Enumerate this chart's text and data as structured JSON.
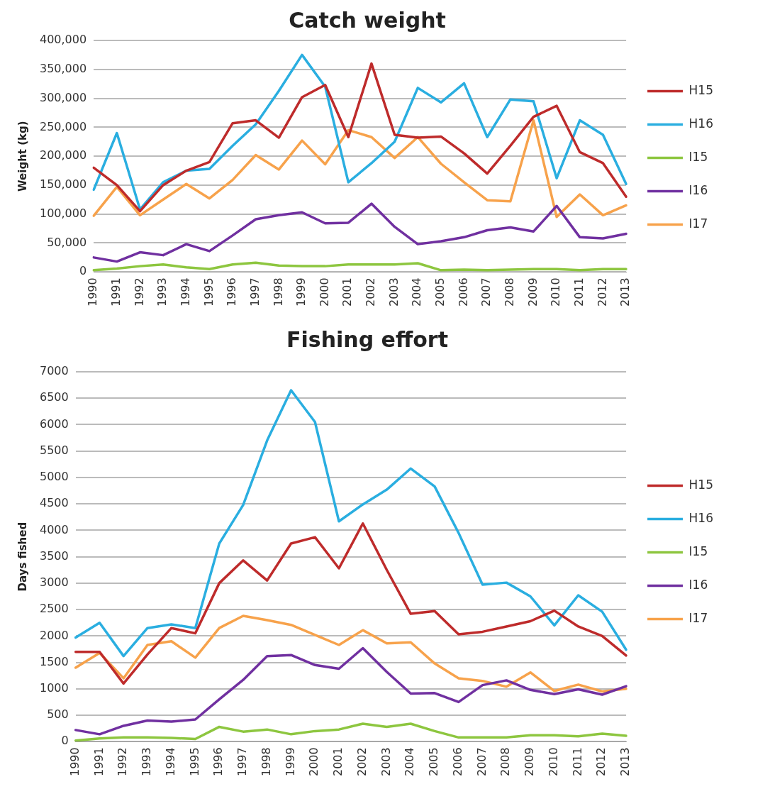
{
  "chart_data": [
    {
      "type": "line",
      "title": "Catch weight",
      "ylabel": "Weight (kg)",
      "legend": "right",
      "grid": "y",
      "marker": "none",
      "line_style": "solid",
      "categories": [
        "1990",
        "1991",
        "1992",
        "1993",
        "1994",
        "1995",
        "1996",
        "1997",
        "1998",
        "1999",
        "2000",
        "2001",
        "2002",
        "2003",
        "2004",
        "2005",
        "2006",
        "2007",
        "2008",
        "2009",
        "2010",
        "2011",
        "2012",
        "2013"
      ],
      "ylim": [
        0,
        400000
      ],
      "yticks": [
        {
          "value": 0,
          "label": "0"
        },
        {
          "value": 50000,
          "label": "50,000"
        },
        {
          "value": 100000,
          "label": "100,000"
        },
        {
          "value": 150000,
          "label": "150,000"
        },
        {
          "value": 200000,
          "label": "200,000"
        },
        {
          "value": 250000,
          "label": "250,000"
        },
        {
          "value": 300000,
          "label": "300,000"
        },
        {
          "value": 350000,
          "label": "350,000"
        },
        {
          "value": 400000,
          "label": "400,000"
        }
      ],
      "series": [
        {
          "name": "H15",
          "color": "#be2b2b",
          "values": [
            180000,
            150000,
            105000,
            150000,
            175000,
            190000,
            257000,
            262000,
            232000,
            302000,
            323000,
            233000,
            360000,
            237000,
            232000,
            234000,
            205000,
            170000,
            218000,
            268000,
            287000,
            207000,
            188000,
            130000
          ]
        },
        {
          "name": "H16",
          "color": "#2aaee0",
          "values": [
            142000,
            240000,
            108000,
            155000,
            175000,
            178000,
            218000,
            255000,
            313000,
            375000,
            320000,
            155000,
            188000,
            225000,
            318000,
            293000,
            326000,
            233000,
            298000,
            295000,
            162000,
            262000,
            237000,
            152000
          ]
        },
        {
          "name": "I15",
          "color": "#8dc63f",
          "values": [
            3000,
            6000,
            10000,
            13000,
            8000,
            5000,
            13000,
            16000,
            11000,
            10000,
            10000,
            13000,
            13000,
            13000,
            15000,
            3000,
            4000,
            3000,
            4000,
            5000,
            5000,
            3000,
            5000,
            5000
          ]
        },
        {
          "name": "I16",
          "color": "#7030a0",
          "values": [
            25000,
            18000,
            34000,
            29000,
            48000,
            36000,
            63000,
            91000,
            98000,
            103000,
            84000,
            85000,
            118000,
            78000,
            48000,
            53000,
            60000,
            72000,
            77000,
            70000,
            114000,
            60000,
            58000,
            66000
          ]
        },
        {
          "name": "I17",
          "color": "#f7a24b",
          "values": [
            97000,
            147000,
            98000,
            125000,
            152000,
            127000,
            159000,
            202000,
            177000,
            227000,
            186000,
            245000,
            233000,
            197000,
            233000,
            187000,
            155000,
            124000,
            122000,
            262000,
            95000,
            134000,
            98000,
            115000
          ]
        }
      ]
    },
    {
      "type": "line",
      "title": "Fishing effort",
      "ylabel": "Days fished",
      "legend": "right",
      "grid": "y",
      "marker": "none",
      "line_style": "solid",
      "categories": [
        "1990",
        "1991",
        "1992",
        "1993",
        "1994",
        "1995",
        "1996",
        "1997",
        "1998",
        "1999",
        "2000",
        "2001",
        "2002",
        "2003",
        "2004",
        "2005",
        "2006",
        "2007",
        "2008",
        "2009",
        "2010",
        "2011",
        "2012",
        "2013"
      ],
      "ylim": [
        0,
        7000
      ],
      "yticks": [
        0,
        500,
        1000,
        1500,
        2000,
        2500,
        3000,
        3500,
        4000,
        4500,
        5000,
        5500,
        6000,
        6500,
        7000
      ],
      "series": [
        {
          "name": "H15",
          "color": "#be2b2b",
          "values": [
            1700,
            1700,
            1100,
            1650,
            2150,
            2050,
            3000,
            3430,
            3050,
            3750,
            3870,
            3280,
            4130,
            3250,
            2420,
            2470,
            2030,
            2080,
            2180,
            2280,
            2480,
            2180,
            2000,
            1630
          ]
        },
        {
          "name": "H16",
          "color": "#2aaee0",
          "values": [
            1970,
            2250,
            1620,
            2150,
            2220,
            2150,
            3750,
            4480,
            5700,
            6650,
            6050,
            4170,
            4490,
            4770,
            5170,
            4830,
            3950,
            2970,
            3010,
            2750,
            2200,
            2770,
            2460,
            1740
          ]
        },
        {
          "name": "I15",
          "color": "#8dc63f",
          "values": [
            20,
            60,
            80,
            80,
            70,
            50,
            280,
            190,
            230,
            140,
            200,
            230,
            340,
            280,
            340,
            200,
            80,
            80,
            80,
            120,
            120,
            100,
            150,
            110
          ]
        },
        {
          "name": "I16",
          "color": "#7030a0",
          "values": [
            220,
            140,
            300,
            400,
            380,
            420,
            800,
            1170,
            1620,
            1640,
            1450,
            1380,
            1770,
            1320,
            910,
            920,
            750,
            1070,
            1160,
            980,
            900,
            990,
            890,
            1050
          ]
        },
        {
          "name": "I17",
          "color": "#f7a24b",
          "values": [
            1400,
            1680,
            1200,
            1830,
            1900,
            1590,
            2150,
            2380,
            2300,
            2210,
            2020,
            1830,
            2110,
            1860,
            1880,
            1480,
            1200,
            1150,
            1040,
            1310,
            960,
            1080,
            950,
            1000
          ]
        }
      ]
    }
  ]
}
